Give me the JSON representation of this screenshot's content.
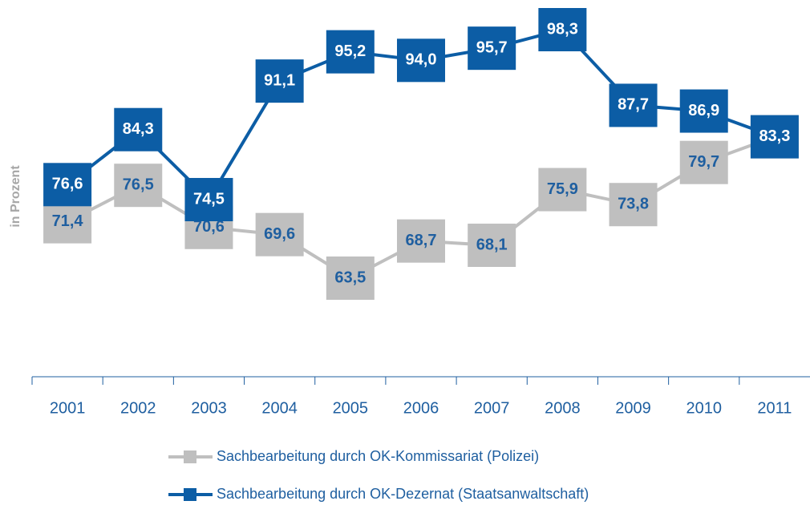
{
  "chart_data": {
    "type": "line",
    "y_label": "in Prozent",
    "categories": [
      "2001",
      "2002",
      "2003",
      "2004",
      "2005",
      "2006",
      "2007",
      "2008",
      "2009",
      "2010",
      "2011"
    ],
    "series": [
      {
        "name": "Sachbearbeitung durch OK-Kommissariat (Polizei)",
        "color": "#bfbfbf",
        "label_color": "#1f5fa0",
        "values": [
          71.4,
          76.5,
          70.6,
          69.6,
          63.5,
          68.7,
          68.1,
          75.9,
          73.8,
          79.7,
          83.3
        ],
        "value_labels": [
          "71,4",
          "76,5",
          "70,6",
          "69,6",
          "63,5",
          "68,7",
          "68,1",
          "75,9",
          "73,8",
          "79,7",
          "83,3"
        ]
      },
      {
        "name": "Sachbearbeitung durch OK-Dezernat (Staatsanwaltschaft)",
        "color": "#0c5da5",
        "label_color": "#ffffff",
        "values": [
          76.6,
          84.3,
          74.5,
          91.1,
          95.2,
          94.0,
          95.7,
          98.3,
          87.7,
          86.9,
          83.3
        ],
        "value_labels": [
          "76,6",
          "84,3",
          "74,5",
          "91,1",
          "95,2",
          "94,0",
          "95,7",
          "98,3",
          "87,7",
          "86,9",
          "83,3"
        ]
      }
    ]
  }
}
